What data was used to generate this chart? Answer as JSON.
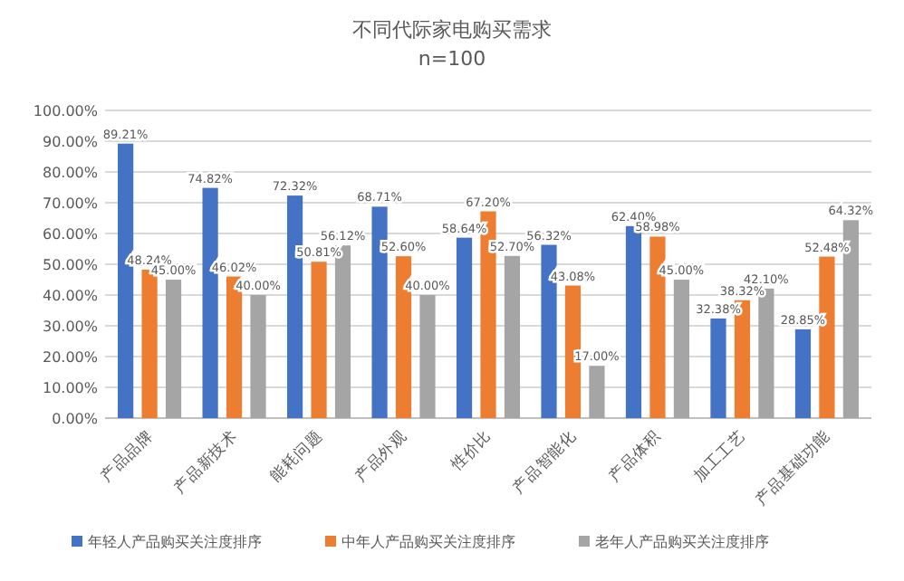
{
  "chart_data": {
    "type": "bar",
    "title": "不同代际家电购买需求",
    "subtitle": "n=100",
    "categories": [
      "产品品牌",
      "产品新技术",
      "能耗问题",
      "产品外观",
      "性价比",
      "产品智能化",
      "产品体积",
      "加工工艺",
      "产品基础功能"
    ],
    "series": [
      {
        "name": "年轻人产品购买关注度排序",
        "color": "#4472c4",
        "values": [
          89.21,
          74.82,
          72.32,
          68.71,
          58.64,
          56.32,
          62.4,
          32.38,
          28.85
        ],
        "value_labels": [
          "89.21%",
          "74.82%",
          "72.32%",
          "68.71%",
          "58.64%",
          "56.32%",
          "62.40%",
          "32.38%",
          "28.85%"
        ]
      },
      {
        "name": "中年人产品购买关注度排序",
        "color": "#ed7d31",
        "values": [
          48.24,
          46.02,
          50.81,
          52.6,
          67.2,
          43.08,
          58.98,
          38.32,
          52.48
        ],
        "value_labels": [
          "48.24%",
          "46.02%",
          "50.81%",
          "52.60%",
          "67.20%",
          "43.08%",
          "58.98%",
          "38.32%",
          "52.48%"
        ]
      },
      {
        "name": "老年人产品购买关注度排序",
        "color": "#a5a5a5",
        "values": [
          45,
          40,
          56.12,
          40,
          52.7,
          17,
          45,
          42.1,
          64.32
        ],
        "value_labels": [
          "45.00%",
          "40.00%",
          "56.12%",
          "40.00%",
          "52.70%",
          "17.00%",
          "45.00%",
          "42.10%",
          "64.32%"
        ]
      }
    ],
    "ylim": [
      0,
      100
    ],
    "yticks": [
      {
        "value": 0,
        "label": "0.00%"
      },
      {
        "value": 10,
        "label": "10.00%"
      },
      {
        "value": 20,
        "label": "20.00%"
      },
      {
        "value": 30,
        "label": "30.00%"
      },
      {
        "value": 40,
        "label": "40.00%"
      },
      {
        "value": 50,
        "label": "50.00%"
      },
      {
        "value": 60,
        "label": "60.00%"
      },
      {
        "value": 70,
        "label": "70.00%"
      },
      {
        "value": 80,
        "label": "80.00%"
      },
      {
        "value": 90,
        "label": "90.00%"
      },
      {
        "value": 100,
        "label": "100.00%"
      }
    ],
    "grid": "y",
    "legend": "bottom"
  }
}
